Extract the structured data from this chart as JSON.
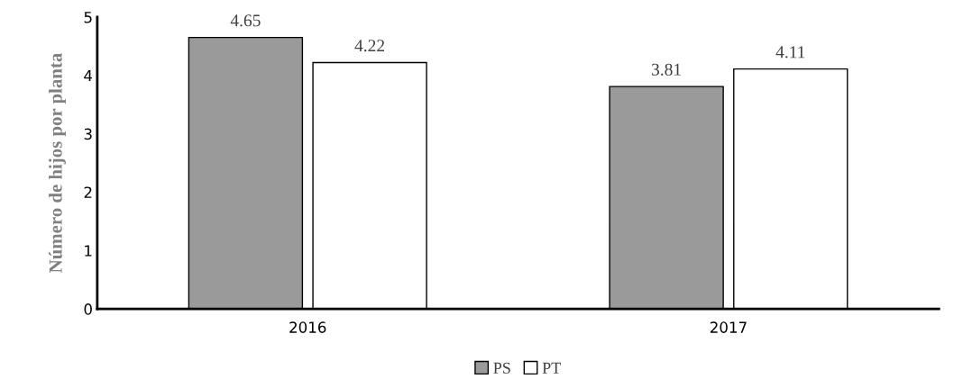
{
  "chart_data": {
    "type": "bar",
    "ylabel": "Número de hijos por planta",
    "categories": [
      "2016",
      "2017"
    ],
    "series": [
      {
        "name": "PS",
        "color": "#9a9a9a",
        "values": [
          4.65,
          3.81
        ]
      },
      {
        "name": "PT",
        "color": "#ffffff",
        "values": [
          4.22,
          4.11
        ]
      }
    ],
    "ylim": [
      0,
      5
    ],
    "yticks": [
      0,
      1,
      2,
      3,
      4,
      5
    ],
    "data_labels": true,
    "legend": "bottom",
    "grid": false
  }
}
